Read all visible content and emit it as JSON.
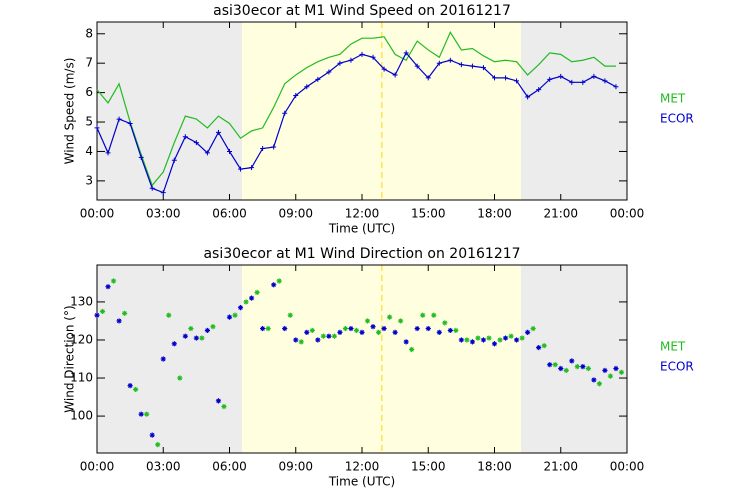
{
  "chart_data": [
    {
      "type": "line",
      "title": "asi30ecor at M1 Wind Speed on 20161217",
      "x_label": "Time (UTC)",
      "y_label": "Wind Speed (m/s)",
      "xlim": [
        0,
        24
      ],
      "xticks": [
        {
          "value": 0,
          "label": "00:00"
        },
        {
          "value": 3,
          "label": "03:00"
        },
        {
          "value": 6,
          "label": "06:00"
        },
        {
          "value": 9,
          "label": "09:00"
        },
        {
          "value": 12,
          "label": "12:00"
        },
        {
          "value": 15,
          "label": "15:00"
        },
        {
          "value": 18,
          "label": "18:00"
        },
        {
          "value": 21,
          "label": "21:00"
        },
        {
          "value": 24,
          "label": "00:00"
        }
      ],
      "ylim": [
        2.35,
        8.4
      ],
      "yticks": [
        3,
        4,
        5,
        6,
        7,
        8
      ],
      "shading": [
        {
          "range": [
            0,
            6.57
          ],
          "color": "#ececec"
        },
        {
          "range": [
            6.57,
            19.2
          ],
          "color": "#ffffe0"
        },
        {
          "range": [
            19.2,
            24
          ],
          "color": "#ececec"
        }
      ],
      "vline": {
        "x": 12.9,
        "color": "#ffd700"
      },
      "x": [
        0,
        0.5,
        1,
        1.5,
        2,
        2.5,
        3,
        3.5,
        4,
        4.5,
        5,
        5.5,
        6,
        6.5,
        7,
        7.5,
        8,
        8.5,
        9,
        9.5,
        10,
        10.5,
        11,
        11.5,
        12,
        12.5,
        13,
        13.5,
        14,
        14.5,
        15,
        15.5,
        16,
        16.5,
        17,
        17.5,
        18,
        18.5,
        19,
        19.5,
        20,
        20.5,
        21,
        21.5,
        22,
        22.5,
        23,
        23.5
      ],
      "series": [
        {
          "name": "MET",
          "color": "#22bb22",
          "values": [
            6.1,
            5.65,
            6.3,
            5.0,
            3.9,
            2.85,
            3.3,
            4.3,
            5.2,
            5.1,
            4.8,
            5.2,
            4.95,
            4.45,
            4.7,
            4.8,
            5.5,
            6.3,
            6.6,
            6.85,
            7.05,
            7.2,
            7.3,
            7.65,
            7.85,
            7.85,
            7.9,
            7.3,
            7.1,
            7.75,
            7.45,
            7.2,
            8.05,
            7.45,
            7.5,
            7.25,
            7.05,
            7.1,
            7.05,
            6.6,
            6.95,
            7.35,
            7.3,
            7.05,
            7.1,
            7.2,
            6.9,
            6.9
          ]
        },
        {
          "name": "ECOR",
          "color": "#0000cc",
          "values": [
            4.8,
            3.95,
            5.1,
            4.95,
            3.8,
            2.75,
            2.6,
            3.7,
            4.5,
            4.3,
            3.95,
            4.65,
            4.0,
            3.4,
            3.45,
            4.1,
            4.15,
            5.3,
            5.9,
            6.2,
            6.45,
            6.7,
            7.0,
            7.1,
            7.3,
            7.2,
            6.8,
            6.6,
            7.35,
            6.9,
            6.5,
            7.0,
            7.1,
            6.95,
            6.9,
            6.85,
            6.5,
            6.5,
            6.4,
            5.85,
            6.1,
            6.45,
            6.55,
            6.35,
            6.35,
            6.55,
            6.4,
            6.2
          ]
        }
      ]
    },
    {
      "type": "scatter",
      "title": "asi30ecor at M1 Wind Direction on 20161217",
      "x_label": "Time (UTC)",
      "y_label": "Wind Direction (°)",
      "xlim": [
        0,
        24
      ],
      "xticks": [
        {
          "value": 0,
          "label": "00:00"
        },
        {
          "value": 3,
          "label": "03:00"
        },
        {
          "value": 6,
          "label": "06:00"
        },
        {
          "value": 9,
          "label": "09:00"
        },
        {
          "value": 12,
          "label": "12:00"
        },
        {
          "value": 15,
          "label": "15:00"
        },
        {
          "value": 18,
          "label": "18:00"
        },
        {
          "value": 21,
          "label": "21:00"
        },
        {
          "value": 24,
          "label": "00:00"
        }
      ],
      "ylim": [
        90.3,
        139.7
      ],
      "yticks": [
        100,
        110,
        120,
        130
      ],
      "shading": [
        {
          "range": [
            0,
            6.57
          ],
          "color": "#ececec"
        },
        {
          "range": [
            6.57,
            19.2
          ],
          "color": "#ffffe0"
        },
        {
          "range": [
            19.2,
            24
          ],
          "color": "#ececec"
        }
      ],
      "vline": {
        "x": 12.9,
        "color": "#ffd700"
      },
      "series": [
        {
          "name": "MET",
          "color": "#22bb22",
          "x": [
            0.25,
            0.75,
            1.25,
            1.75,
            2.25,
            2.75,
            3.25,
            3.75,
            4.25,
            4.75,
            5.25,
            5.75,
            6.25,
            6.75,
            7.25,
            7.75,
            8.25,
            8.75,
            9.25,
            9.75,
            10.25,
            10.75,
            11.25,
            11.75,
            12.25,
            12.75,
            13.25,
            13.75,
            14.25,
            14.75,
            15.25,
            15.75,
            16.25,
            16.75,
            17.25,
            17.75,
            18.25,
            18.75,
            19.25,
            19.75,
            20.25,
            20.75,
            21.25,
            21.75,
            22.25,
            22.75,
            23.25,
            23.75
          ],
          "values": [
            127.5,
            135.5,
            127,
            107,
            100.5,
            92.5,
            126.5,
            110,
            123,
            120.5,
            123.5,
            102.5,
            126.5,
            130,
            132.5,
            123,
            135.5,
            126.5,
            119.5,
            122.5,
            121,
            121,
            123,
            122.5,
            125,
            122,
            126,
            125,
            117.5,
            126.5,
            126.5,
            124.5,
            122.5,
            120,
            120.5,
            120.5,
            120,
            121,
            120.5,
            123,
            118.5,
            113.5,
            112,
            113,
            112.5,
            108.5,
            110.5,
            111.5
          ]
        },
        {
          "name": "ECOR",
          "color": "#0000cc",
          "x": [
            0,
            0.5,
            1,
            1.5,
            2,
            2.5,
            3,
            3.5,
            4,
            4.5,
            5,
            5.5,
            6,
            6.5,
            7,
            7.5,
            8,
            8.5,
            9,
            9.5,
            10,
            10.5,
            11,
            11.5,
            12,
            12.5,
            13,
            13.5,
            14,
            14.5,
            15,
            15.5,
            16,
            16.5,
            17,
            17.5,
            18,
            18.5,
            19,
            19.5,
            20,
            20.5,
            21,
            21.5,
            22,
            22.5,
            23,
            23.5
          ],
          "values": [
            126.5,
            134,
            125,
            108,
            100.5,
            95,
            115,
            119,
            121,
            120.5,
            122.5,
            104,
            126,
            128.5,
            131,
            123,
            134.5,
            123,
            120,
            122,
            120,
            121,
            122,
            123,
            122,
            123.5,
            123,
            122,
            119.5,
            123,
            123,
            122,
            122.5,
            120,
            119.5,
            120,
            119,
            120.5,
            120,
            122,
            118,
            113.5,
            112.5,
            114.5,
            113,
            109.5,
            112,
            112.5
          ]
        }
      ]
    }
  ]
}
